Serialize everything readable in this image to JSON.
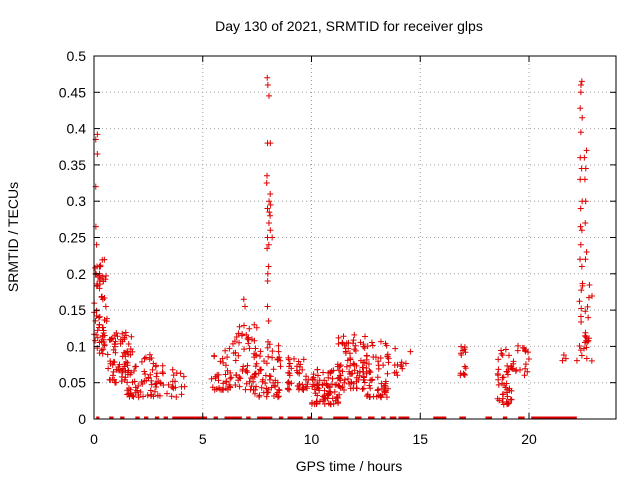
{
  "chart_data": {
    "type": "scatter",
    "title": "Day 130 of 2021, SRMTID for receiver glps",
    "xlabel": "GPS time / hours",
    "ylabel": "SRMTID / TECUs",
    "xlim": [
      0,
      24
    ],
    "ylim": [
      0,
      0.5
    ],
    "x_ticks": [
      0,
      5,
      10,
      15,
      20
    ],
    "x_tick_labels": [
      "0",
      "5",
      "10",
      "15",
      "20"
    ],
    "y_ticks": [
      0,
      0.05,
      0.1,
      0.15,
      0.2,
      0.25,
      0.3,
      0.35,
      0.4,
      0.45,
      0.5
    ],
    "y_tick_labels": [
      "0",
      "0.05",
      "0.1",
      "0.15",
      "0.2",
      "0.25",
      "0.3",
      "0.35",
      "0.4",
      "0.45",
      "0.5"
    ],
    "grid": true,
    "marker": "+",
    "series_color": "#e00000",
    "clusters": [
      {
        "x0": 0.0,
        "x1": 0.6,
        "ymin": 0.09,
        "ymax": 0.22,
        "n": 60
      },
      {
        "x0": 0.6,
        "x1": 1.8,
        "ymin": 0.05,
        "ymax": 0.12,
        "n": 70
      },
      {
        "x0": 1.5,
        "x1": 3.2,
        "ymin": 0.03,
        "ymax": 0.09,
        "n": 70
      },
      {
        "x0": 3.3,
        "x1": 4.2,
        "ymin": 0.03,
        "ymax": 0.07,
        "n": 18
      },
      {
        "x0": 5.4,
        "x1": 6.3,
        "ymin": 0.04,
        "ymax": 0.1,
        "n": 35
      },
      {
        "x0": 6.3,
        "x1": 7.5,
        "ymin": 0.04,
        "ymax": 0.13,
        "n": 55
      },
      {
        "x0": 7.3,
        "x1": 8.6,
        "ymin": 0.03,
        "ymax": 0.11,
        "n": 60
      },
      {
        "x0": 8.9,
        "x1": 9.9,
        "ymin": 0.04,
        "ymax": 0.09,
        "n": 40
      },
      {
        "x0": 10.0,
        "x1": 11.3,
        "ymin": 0.02,
        "ymax": 0.07,
        "n": 80
      },
      {
        "x0": 11.2,
        "x1": 12.5,
        "ymin": 0.04,
        "ymax": 0.12,
        "n": 80
      },
      {
        "x0": 12.5,
        "x1": 13.6,
        "ymin": 0.03,
        "ymax": 0.11,
        "n": 60
      },
      {
        "x0": 13.8,
        "x1": 14.6,
        "ymin": 0.06,
        "ymax": 0.1,
        "n": 12
      },
      {
        "x0": 16.8,
        "x1": 17.1,
        "ymin": 0.06,
        "ymax": 0.1,
        "n": 14
      },
      {
        "x0": 18.5,
        "x1": 19.2,
        "ymin": 0.02,
        "ymax": 0.1,
        "n": 45
      },
      {
        "x0": 19.2,
        "x1": 20.0,
        "ymin": 0.06,
        "ymax": 0.11,
        "n": 20
      },
      {
        "x0": 21.4,
        "x1": 21.7,
        "ymin": 0.08,
        "ymax": 0.095,
        "n": 3
      },
      {
        "x0": 22.2,
        "x1": 22.9,
        "ymin": 0.08,
        "ymax": 0.2,
        "n": 30
      }
    ],
    "spikes": [
      {
        "x": 0.1,
        "values": [
          0.392,
          0.385,
          0.365,
          0.32,
          0.265,
          0.24,
          0.2,
          0.21
        ]
      },
      {
        "x": 0.3,
        "values": [
          0.21,
          0.2,
          0.19,
          0.18
        ]
      },
      {
        "x": 6.9,
        "values": [
          0.165,
          0.155
        ]
      },
      {
        "x": 8.0,
        "values": [
          0.47,
          0.46,
          0.445,
          0.38,
          0.335,
          0.325,
          0.3,
          0.29,
          0.285,
          0.27,
          0.25,
          0.24,
          0.235,
          0.21,
          0.2,
          0.19,
          0.155,
          0.135
        ]
      },
      {
        "x": 8.15,
        "values": [
          0.38,
          0.31,
          0.295,
          0.28,
          0.26,
          0.25
        ]
      },
      {
        "x": 22.4,
        "values": [
          0.465,
          0.46,
          0.45,
          0.428,
          0.415,
          0.395,
          0.36,
          0.345,
          0.33,
          0.3,
          0.29,
          0.265,
          0.26,
          0.24,
          0.22,
          0.21
        ]
      },
      {
        "x": 22.6,
        "values": [
          0.37,
          0.36,
          0.345,
          0.33,
          0.3,
          0.27,
          0.23,
          0.22
        ]
      }
    ],
    "zero_segments": [
      [
        0.1,
        0.25
      ],
      [
        0.7,
        0.9
      ],
      [
        1.2,
        1.4
      ],
      [
        1.9,
        2.1
      ],
      [
        2.3,
        2.5
      ],
      [
        2.8,
        3.0
      ],
      [
        3.2,
        3.4
      ],
      [
        3.6,
        5.2
      ],
      [
        5.5,
        5.7
      ],
      [
        6.0,
        6.8
      ],
      [
        7.0,
        7.2
      ],
      [
        7.5,
        8.2
      ],
      [
        8.5,
        8.7
      ],
      [
        8.9,
        9.6
      ],
      [
        9.8,
        10.0
      ],
      [
        10.3,
        10.5
      ],
      [
        11.0,
        11.7
      ],
      [
        12.0,
        12.3
      ],
      [
        12.6,
        12.9
      ],
      [
        13.2,
        13.4
      ],
      [
        13.6,
        13.9
      ],
      [
        14.0,
        14.5
      ],
      [
        15.6,
        16.2
      ],
      [
        16.8,
        17.1
      ],
      [
        18.0,
        18.3
      ],
      [
        18.8,
        19.0
      ],
      [
        19.5,
        19.8
      ],
      [
        20.1,
        22.2
      ]
    ]
  }
}
